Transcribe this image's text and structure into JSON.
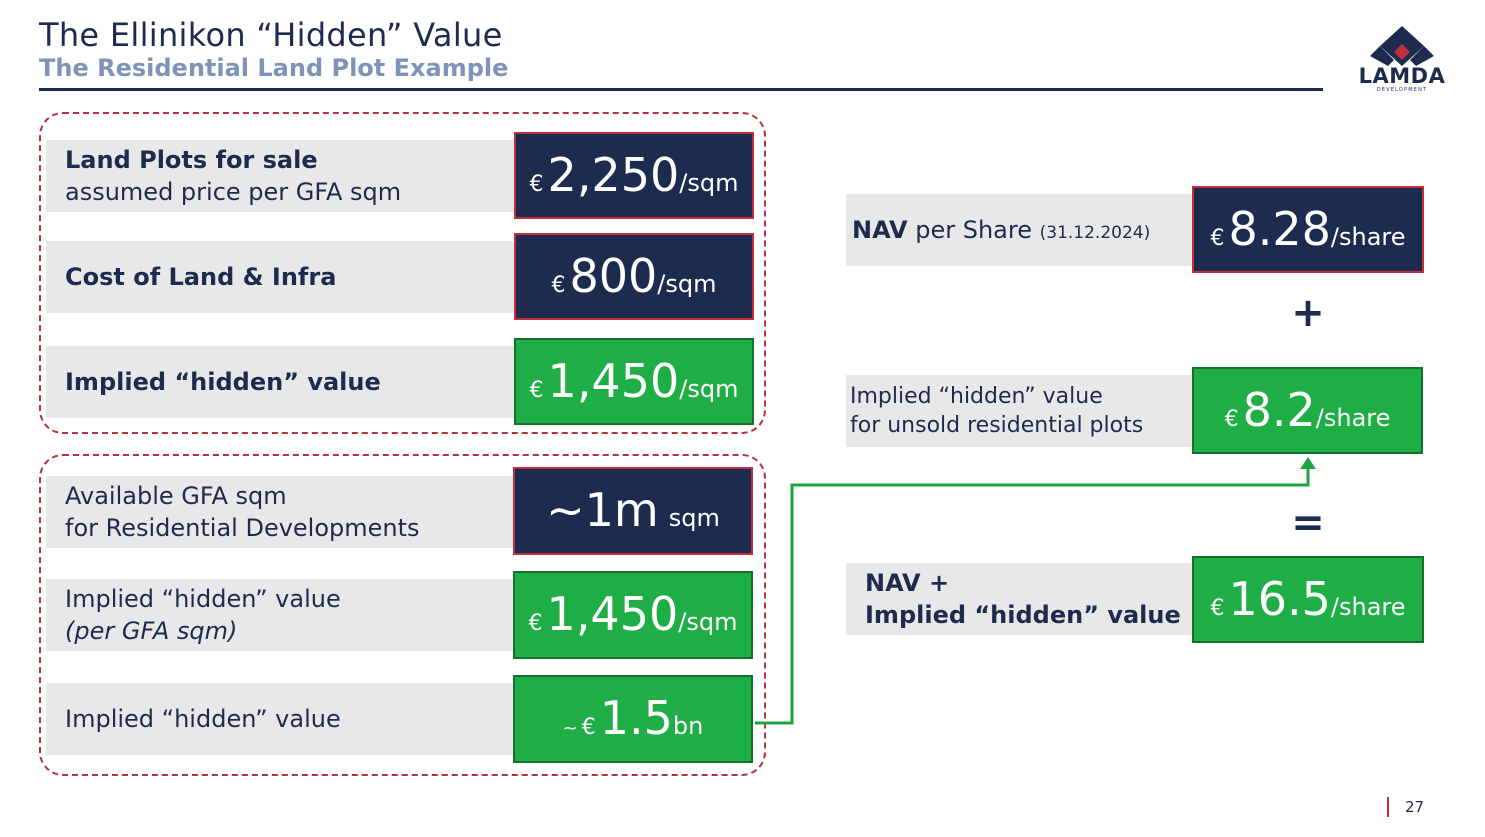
{
  "header": {
    "title": "The Ellinikon “Hidden” Value",
    "subtitle": "The Residential Land Plot Example"
  },
  "logo": {
    "name": "LAMDA",
    "tagline": "DEVELOPMENT"
  },
  "group1": {
    "rows": [
      {
        "label_bold": "Land Plots for sale",
        "label_sub": "assumed price per GFA sqm",
        "currency": "€",
        "value": "2,250",
        "unit": "/sqm"
      },
      {
        "label_bold": "Cost of Land & Infra",
        "currency": "€",
        "value": "800",
        "unit": "/sqm"
      },
      {
        "label_bold": "Implied “hidden” value",
        "currency": "€",
        "value": "1,450",
        "unit": "/sqm"
      }
    ]
  },
  "group2": {
    "rows": [
      {
        "label_line1": "Available GFA sqm",
        "label_line2": "for Residential Developments",
        "value": "~1m",
        "unit": "sqm"
      },
      {
        "label_line1": "Implied “hidden” value",
        "label_line2": "(per GFA sqm)",
        "currency": "€",
        "value": "1,450",
        "unit": "/sqm"
      },
      {
        "label_line1": "Implied “hidden” value",
        "prefix": "~",
        "currency": "€",
        "value": "1.5",
        "unit": "bn"
      }
    ]
  },
  "right": {
    "nav": {
      "label_bold": "NAV",
      "label_rest": " per Share ",
      "label_small": "(31.12.2024)",
      "currency": "€",
      "value": "8.28",
      "unit": "/share"
    },
    "plus": "+",
    "hidden": {
      "label_line1": "Implied “hidden” value",
      "label_line2": "for unsold residential plots",
      "currency": "€",
      "value": "8.2",
      "unit": "/share"
    },
    "equals": "=",
    "total": {
      "label_line1": "NAV +",
      "label_line2": "Implied “hidden” value",
      "currency": "€",
      "value": "16.5",
      "unit": "/share"
    }
  },
  "colors": {
    "navy": "#1d2b4f",
    "green": "#1fad45",
    "red_dash": "#b8323e",
    "subtitle": "#7f93b8"
  },
  "footer": {
    "page_number": "27"
  }
}
